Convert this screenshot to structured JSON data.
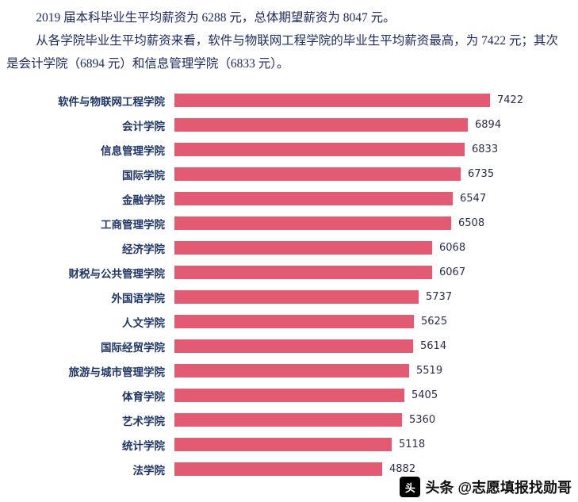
{
  "paragraphs": {
    "p1": "2019 届本科毕业生平均薪资为 6288 元，总体期望薪资为 8047 元。",
    "p2": "从各学院毕业生平均薪资来看，软件与物联网工程学院的毕业生平均薪资最高，为 7422 元；其次是会计学院（6894 元）和信息管理学院（6833 元）。"
  },
  "chart_data": {
    "type": "bar",
    "orientation": "horizontal",
    "title": "",
    "xlabel": "",
    "ylabel": "",
    "categories": [
      "软件与物联网工程学院",
      "会计学院",
      "信息管理学院",
      "国际学院",
      "金融学院",
      "工商管理学院",
      "经济学院",
      "财税与公共管理学院",
      "外国语学院",
      "人文学院",
      "国际经贸学院",
      "旅游与城市管理学院",
      "体育学院",
      "艺术学院",
      "统计学院",
      "法学院"
    ],
    "values": [
      7422,
      6894,
      6833,
      6735,
      6547,
      6508,
      6068,
      6067,
      5737,
      5625,
      5614,
      5519,
      5405,
      5360,
      5118,
      4882
    ],
    "xlim": [
      0,
      7422
    ],
    "bar_color": "#e25b73",
    "value_labels_shown": true,
    "grid": false,
    "legend": "none"
  },
  "watermark": {
    "logo_glyph": "头",
    "label": "头条 @志愿填报找勋哥"
  }
}
